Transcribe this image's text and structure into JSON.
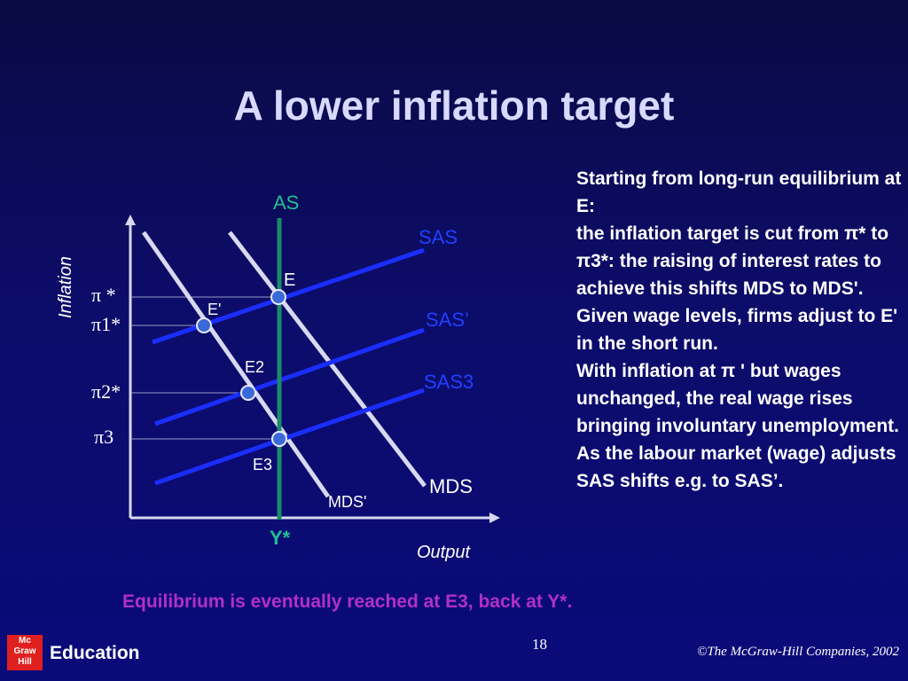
{
  "slide": {
    "title": "A lower inflation target",
    "page_number": "18",
    "copyright": "©The McGraw-Hill Companies, 2002",
    "logo_text": "Mc\nGraw\nHill",
    "logo_word": "Education"
  },
  "diagram": {
    "ylabel": "Inflation",
    "xlabel": "Output",
    "y_ticks": [
      "π *",
      "π1*",
      "π2*",
      "π3"
    ],
    "x_marker": "Y*",
    "curves": {
      "as": "AS",
      "sas": "SAS",
      "sas2": "SAS’",
      "sas3": "SAS3",
      "mds": "MDS",
      "mds2": "MDS'"
    },
    "points": {
      "E": "E",
      "E_prime": "E'",
      "E2": "E2",
      "E3": "E3"
    },
    "colors": {
      "sas_line": "#1a2eff",
      "mds_line": "#d8d8f0",
      "as_line": "#1a8a6a",
      "label_blue": "#2040ff",
      "label_green": "#20c090"
    }
  },
  "side_text": [
    "Starting from long-run equilibrium at E:",
    "the inflation target is cut from π* to π3*: the raising of interest rates to achieve this shifts MDS to MDS'.",
    "Given wage levels, firms adjust to E' in the short run.",
    "With inflation at π ' but wages unchanged, the real wage rises bringing involuntary unemployment.",
    "As the labour market (wage) adjusts SAS shifts e.g. to SAS’."
  ],
  "bottom_note": "Equilibrium is eventually reached at E3, back at Y*."
}
